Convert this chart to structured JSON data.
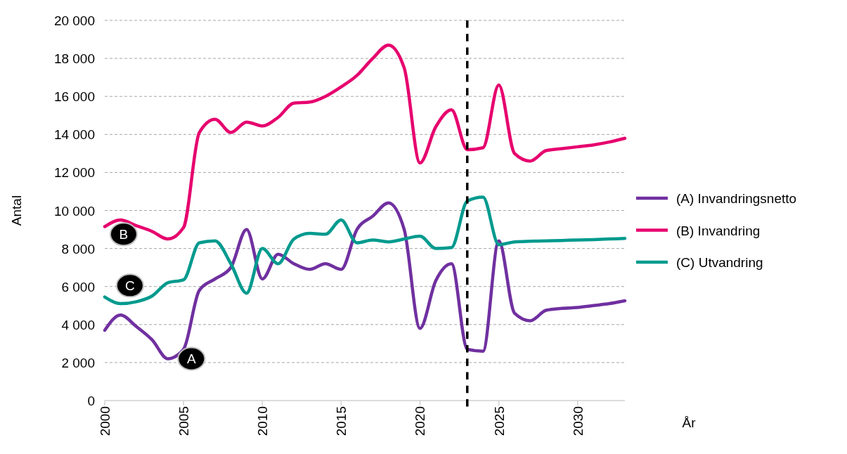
{
  "chart_data": {
    "type": "line",
    "xlabel": "År",
    "ylabel": "Antal",
    "x": [
      2000,
      2001,
      2002,
      2003,
      2004,
      2005,
      2006,
      2007,
      2008,
      2009,
      2010,
      2011,
      2012,
      2013,
      2014,
      2015,
      2016,
      2017,
      2018,
      2019,
      2020,
      2021,
      2022,
      2023,
      2024,
      2025,
      2026,
      2027,
      2028,
      2029,
      2030,
      2031,
      2032,
      2033
    ],
    "series": [
      {
        "name": "(A) Invandringsnetto",
        "color": "#7030a0",
        "values": [
          3700,
          4500,
          3900,
          3200,
          2200,
          2700,
          5800,
          6400,
          7000,
          9000,
          6400,
          7700,
          7200,
          6900,
          7200,
          6900,
          9000,
          9700,
          10400,
          9000,
          3800,
          6300,
          7200,
          2700,
          2600,
          8400,
          4600,
          4200,
          4750,
          4850,
          4900,
          5000,
          5100,
          5250
        ]
      },
      {
        "name": "(B) Invandring",
        "color": "#e6006e",
        "values": [
          9150,
          9500,
          9200,
          8900,
          8500,
          9100,
          14100,
          14800,
          14100,
          14650,
          14450,
          14900,
          15650,
          15700,
          16000,
          16500,
          17100,
          18000,
          18700,
          17500,
          12500,
          14400,
          15300,
          13200,
          13300,
          16600,
          13000,
          12600,
          13150,
          13250,
          13350,
          13450,
          13600,
          13800
        ]
      },
      {
        "name": "(C) Utvandring",
        "color": "#009a8e",
        "values": [
          5450,
          5100,
          5200,
          5500,
          6200,
          6350,
          8300,
          8400,
          7200,
          5650,
          8000,
          7200,
          8500,
          8800,
          8750,
          9500,
          8300,
          8450,
          8350,
          8500,
          8650,
          8000,
          8050,
          10500,
          10700,
          8200,
          8350,
          8380,
          8400,
          8420,
          8450,
          8470,
          8500,
          8530
        ]
      }
    ],
    "xlim": [
      2000,
      2033
    ],
    "xticks": [
      2000,
      2005,
      2010,
      2015,
      2020,
      2025,
      2030
    ],
    "ylim": [
      0,
      20000
    ],
    "yticks": [
      0,
      {
        "value": 2000,
        "label": "2 000"
      },
      {
        "value": 4000,
        "label": "4 000"
      },
      {
        "value": 6000,
        "label": "6 000"
      },
      {
        "value": 8000,
        "label": "8 000"
      },
      {
        "value": 10000,
        "label": "10 000"
      },
      {
        "value": 12000,
        "label": "12 000"
      },
      {
        "value": 14000,
        "label": "14 000"
      },
      {
        "value": 16000,
        "label": "16 000"
      },
      {
        "value": 18000,
        "label": "18 000"
      },
      {
        "value": 20000,
        "label": "20 000"
      }
    ],
    "grid": "y",
    "legend": "right",
    "marker": "none",
    "line_style": "solid",
    "ref_lines": [
      {
        "axis": "x",
        "value": 2023,
        "color": "#000000",
        "line_style": "dashed"
      }
    ],
    "annotations": [
      {
        "text": "A",
        "x": 2005.5,
        "y": 2200
      },
      {
        "text": "B",
        "x": 2001.2,
        "y": 8750
      },
      {
        "text": "C",
        "x": 2001.6,
        "y": 6050
      }
    ]
  }
}
